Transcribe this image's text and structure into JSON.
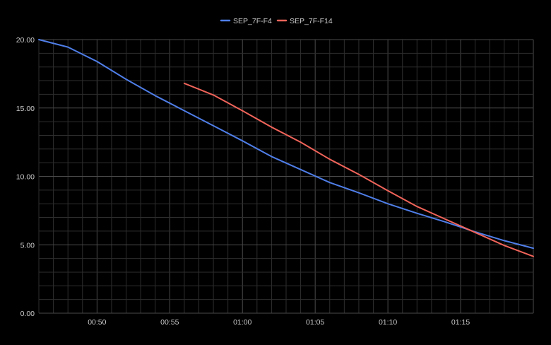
{
  "chart_data": {
    "type": "line",
    "title": "",
    "xlabel": "",
    "ylabel": "",
    "x_ticks": [
      "00:50",
      "00:55",
      "01:00",
      "01:05",
      "01:10",
      "01:15"
    ],
    "y_ticks": [
      "0.00",
      "5.00",
      "10.00",
      "15.00",
      "20.00"
    ],
    "xlim": [
      "00:46",
      "01:20"
    ],
    "ylim": [
      0,
      20
    ],
    "grid": true,
    "legend_position": "top-center",
    "colors": {
      "background": "#000000",
      "grid": "#2e2e2e",
      "grid_major": "#4a4a4a",
      "text": "#cccccc"
    },
    "series": [
      {
        "name": "SEP_7F-F4",
        "color": "#4f7ee8",
        "x": [
          "00:46",
          "00:48",
          "00:50",
          "00:52",
          "00:54",
          "00:56",
          "00:58",
          "01:00",
          "01:02",
          "01:04",
          "01:06",
          "01:08",
          "01:10",
          "01:12",
          "01:14",
          "01:16",
          "01:18",
          "01:20"
        ],
        "values": [
          20.0,
          19.45,
          18.4,
          17.1,
          15.9,
          14.8,
          13.7,
          12.6,
          11.45,
          10.5,
          9.55,
          8.8,
          8.0,
          7.3,
          6.65,
          5.95,
          5.3,
          4.75
        ]
      },
      {
        "name": "SEP_7F-F14",
        "color": "#f0645a",
        "x": [
          "00:56",
          "00:58",
          "01:00",
          "01:02",
          "01:04",
          "01:06",
          "01:08",
          "01:10",
          "01:12",
          "01:14",
          "01:16",
          "01:18",
          "01:20"
        ],
        "values": [
          16.8,
          15.95,
          14.8,
          13.6,
          12.5,
          11.25,
          10.15,
          8.95,
          7.8,
          6.85,
          5.9,
          4.95,
          4.15
        ]
      }
    ]
  }
}
